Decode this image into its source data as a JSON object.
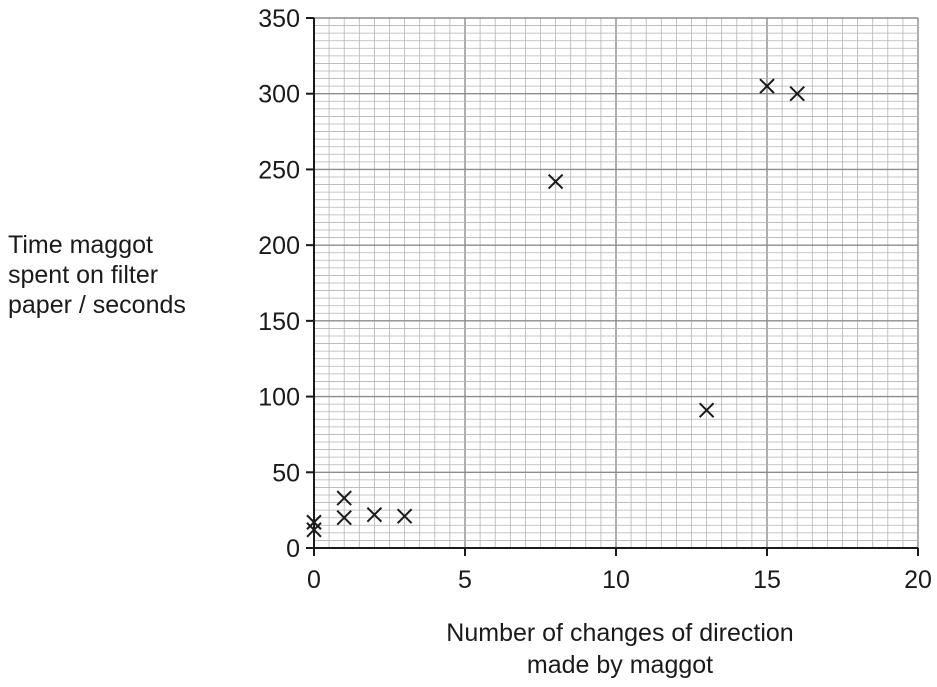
{
  "chart_data": {
    "type": "scatter",
    "title": "",
    "ylabel_lines": [
      "Time maggot",
      "spent on filter",
      "paper / seconds"
    ],
    "xlabel_lines": [
      "Number of changes of direction",
      "made by maggot"
    ],
    "xlim": [
      0,
      20
    ],
    "ylim": [
      0,
      350
    ],
    "x_ticks": [
      0,
      5,
      10,
      15,
      20
    ],
    "y_ticks": [
      0,
      50,
      100,
      150,
      200,
      250,
      300,
      350
    ],
    "x_minor_step": 0.5,
    "y_minor_step": 5,
    "grid": true,
    "marker": "x",
    "points": [
      {
        "x": 0,
        "y": 12
      },
      {
        "x": 0,
        "y": 17
      },
      {
        "x": 1,
        "y": 20
      },
      {
        "x": 1,
        "y": 33
      },
      {
        "x": 2,
        "y": 22
      },
      {
        "x": 3,
        "y": 21
      },
      {
        "x": 8,
        "y": 242
      },
      {
        "x": 13,
        "y": 91
      },
      {
        "x": 15,
        "y": 305
      },
      {
        "x": 16,
        "y": 300
      }
    ],
    "colors": {
      "grid_minor": "#b4b4b4",
      "grid_major": "#8c8c8c",
      "axis": "#1a1a1a",
      "marker": "#1a1a1a"
    }
  }
}
